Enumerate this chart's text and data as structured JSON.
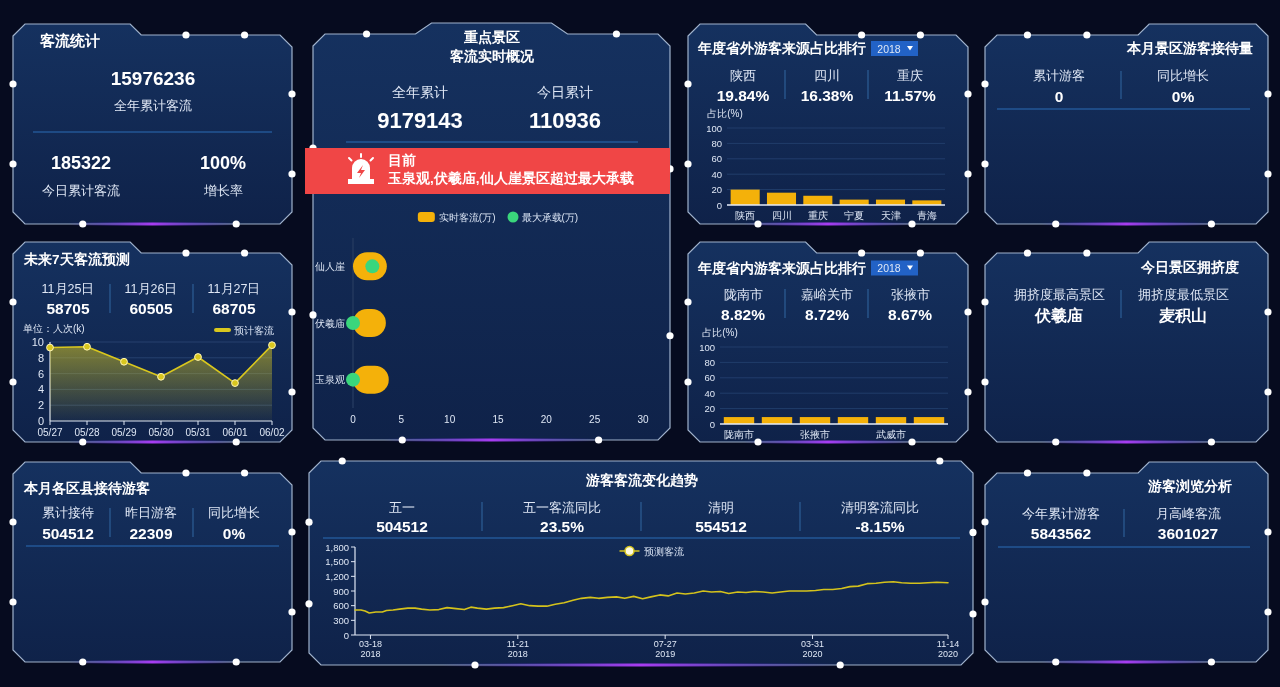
{
  "chart_data": [
    {
      "type": "other",
      "title": "客流统计",
      "annotations": [
        "15976236",
        "全年累计客流",
        "185322",
        "今日累计客流",
        "100%",
        "增长率"
      ]
    },
    {
      "type": "bar",
      "orientation": "horizontal",
      "title": "重点景区",
      "subtitle": "客流实时概况",
      "categories": [
        "仙人崖",
        "伏羲庙",
        "玉泉观"
      ],
      "series": [
        {
          "name": "实时客流(万)",
          "color": "#f4b10a",
          "values": [
            3.5,
            3.4,
            3.7
          ]
        },
        {
          "name": "最大承载(万)",
          "type": "scatter",
          "color": "#3ad67c",
          "values": [
            2.0,
            0,
            0
          ]
        }
      ],
      "xlim": [
        0,
        30
      ],
      "xticks": [
        0,
        5,
        10,
        15,
        20,
        25,
        30
      ],
      "legend": "top",
      "marker": "circle",
      "annotations": [
        "全年累计",
        "9179143",
        "今日累计",
        "110936",
        "目前",
        "玉泉观,伏羲庙,仙人崖景区超过最大承载"
      ]
    },
    {
      "type": "bar",
      "title": "年度省外游客来源占比排行",
      "ylabel": "占比(%)",
      "categories": [
        "陕西",
        "四川",
        "重庆",
        "宁夏",
        "天津",
        "青海"
      ],
      "values": [
        20,
        16,
        12,
        7,
        7,
        6
      ],
      "color": "#f4b10a",
      "ylim": [
        0,
        100
      ],
      "yticks": [
        0,
        20,
        40,
        60,
        80,
        100
      ],
      "grid": "y",
      "annotations": [
        "2018",
        "陕西",
        "19.84%",
        "四川",
        "16.38%",
        "重庆",
        "11.57%"
      ]
    },
    {
      "type": "other",
      "title": "本月景区游客接待量",
      "annotations": [
        "累计游客",
        "0",
        "同比增长",
        "0%"
      ]
    },
    {
      "type": "area",
      "title": "未来7天客流预测",
      "ylabel": "单位：人次(k)",
      "categories": [
        "05/27",
        "05/28",
        "05/29",
        "05/30",
        "05/31",
        "06/01",
        "06/02"
      ],
      "series": [
        {
          "name": "预计客流",
          "color": "#d9c71e",
          "values": [
            9.3,
            9.4,
            7.5,
            5.6,
            8.1,
            4.8,
            9.6
          ]
        }
      ],
      "ylim": [
        0,
        10
      ],
      "yticks": [
        0,
        2,
        4,
        6,
        8,
        10
      ],
      "grid": "y",
      "legend": "top right",
      "marker": "circle",
      "annotations": [
        "11月25日",
        "58705",
        "11月26日",
        "60505",
        "11月27日",
        "68705"
      ]
    },
    {
      "type": "bar",
      "title": "年度省内游客来源占比排行",
      "ylabel": "占比(%)",
      "categories": [
        "陇南市",
        null,
        "张掖市",
        null,
        "武威市",
        null
      ],
      "values": [
        9,
        9,
        9,
        9,
        9,
        9
      ],
      "color": "#f4b10a",
      "ylim": [
        0,
        100
      ],
      "yticks": [
        0,
        20,
        40,
        60,
        80,
        100
      ],
      "grid": "y",
      "annotations": [
        "2018",
        "陇南市",
        "8.82%",
        "嘉峪关市",
        "8.72%",
        "张掖市",
        "8.67%"
      ]
    },
    {
      "type": "other",
      "title": "今日景区拥挤度",
      "annotations": [
        "拥挤度最高景区",
        "伏羲庙",
        "拥挤度最低景区",
        "麦积山"
      ]
    },
    {
      "type": "other",
      "title": "本月各区县接待游客",
      "annotations": [
        "累计接待",
        "504512",
        "昨日游客",
        "22309",
        "同比增长",
        "0%"
      ]
    },
    {
      "type": "line",
      "title": "游客客流变化趋势",
      "x": [
        "2018-02-20",
        "2018-03-02",
        "2018-03-09",
        "2018-03-16",
        "2018-03-27",
        "2018-04-07",
        "2018-04-14",
        "2018-04-25",
        "2018-05-06",
        "2018-05-20",
        "2018-06-01",
        "2018-06-12",
        "2018-06-26",
        "2018-07-11",
        "2018-07-25",
        "2018-08-09",
        "2018-08-23",
        "2018-09-03",
        "2018-09-14",
        "2018-09-29",
        "2018-10-13",
        "2018-10-28",
        "2018-11-12",
        "2018-11-26",
        "2018-12-11",
        "2018-12-25",
        "2019-01-09",
        "2019-01-23",
        "2019-02-07",
        "2019-02-22",
        "2019-03-08",
        "2019-03-23",
        "2019-04-06",
        "2019-04-21",
        "2019-05-06",
        "2019-05-20",
        "2019-06-04",
        "2019-06-19",
        "2019-07-03",
        "2019-07-18",
        "2019-08-01",
        "2019-08-16",
        "2019-08-30",
        "2019-09-14",
        "2019-09-29",
        "2019-10-13",
        "2019-10-28",
        "2019-11-11",
        "2019-11-26",
        "2019-12-10",
        "2019-12-25",
        "2020-01-08",
        "2020-01-23",
        "2020-02-06",
        "2020-02-21",
        "2020-03-07",
        "2020-03-21",
        "2020-04-05",
        "2020-04-19",
        "2020-05-04",
        "2020-05-19",
        "2020-06-02",
        "2020-06-16",
        "2020-07-01",
        "2020-07-16",
        "2020-07-30",
        "2020-08-14",
        "2020-08-28",
        "2020-09-12",
        "2020-09-27",
        "2020-10-11",
        "2020-10-26",
        "2020-11-14"
      ],
      "series": [
        {
          "name": "预测客流",
          "color": "#d4c21c",
          "values": [
            510,
            510,
            490,
            450,
            470,
            470,
            500,
            510,
            530,
            550,
            550,
            530,
            510,
            520,
            560,
            540,
            520,
            570,
            550,
            530,
            550,
            560,
            600,
            640,
            600,
            590,
            590,
            630,
            660,
            710,
            750,
            770,
            750,
            770,
            780,
            750,
            790,
            740,
            780,
            820,
            800,
            860,
            840,
            860,
            900,
            880,
            890,
            850,
            880,
            870,
            890,
            880,
            860,
            880,
            900,
            900,
            900,
            910,
            930,
            930,
            950,
            990,
            1000,
            1050,
            1060,
            1080,
            1090,
            1070,
            1060,
            1060,
            1070,
            1080,
            1070
          ]
        }
      ],
      "xlim": [
        "2018-02-20",
        "2020-11-14"
      ],
      "xticks": [
        {
          "value": "2018-03-18",
          "label": "03-18\n2018"
        },
        {
          "value": "2018-11-21",
          "label": "11-21\n2018"
        },
        {
          "value": "2019-07-27",
          "label": "07-27\n2019"
        },
        {
          "value": "2020-03-31",
          "label": "03-31\n2020"
        },
        {
          "value": "2020-11-14",
          "label": "11-14\n2020"
        }
      ],
      "ylim": [
        0,
        1800
      ],
      "yticks": [
        0,
        300,
        600,
        900,
        {
          "value": 1200,
          "label": "1,200"
        },
        {
          "value": 1500,
          "label": "1,500"
        },
        {
          "value": 1800,
          "label": "1,800"
        }
      ],
      "legend": "top",
      "annotations": [
        "五一",
        "504512",
        "五一客流同比",
        "23.5%",
        "清明",
        "554512",
        "清明客流同比",
        "-8.15%"
      ]
    },
    {
      "type": "other",
      "title": "游客浏览分析",
      "annotations": [
        "今年累计游客",
        "5843562",
        "月高峰客流",
        "3601027"
      ]
    }
  ]
}
